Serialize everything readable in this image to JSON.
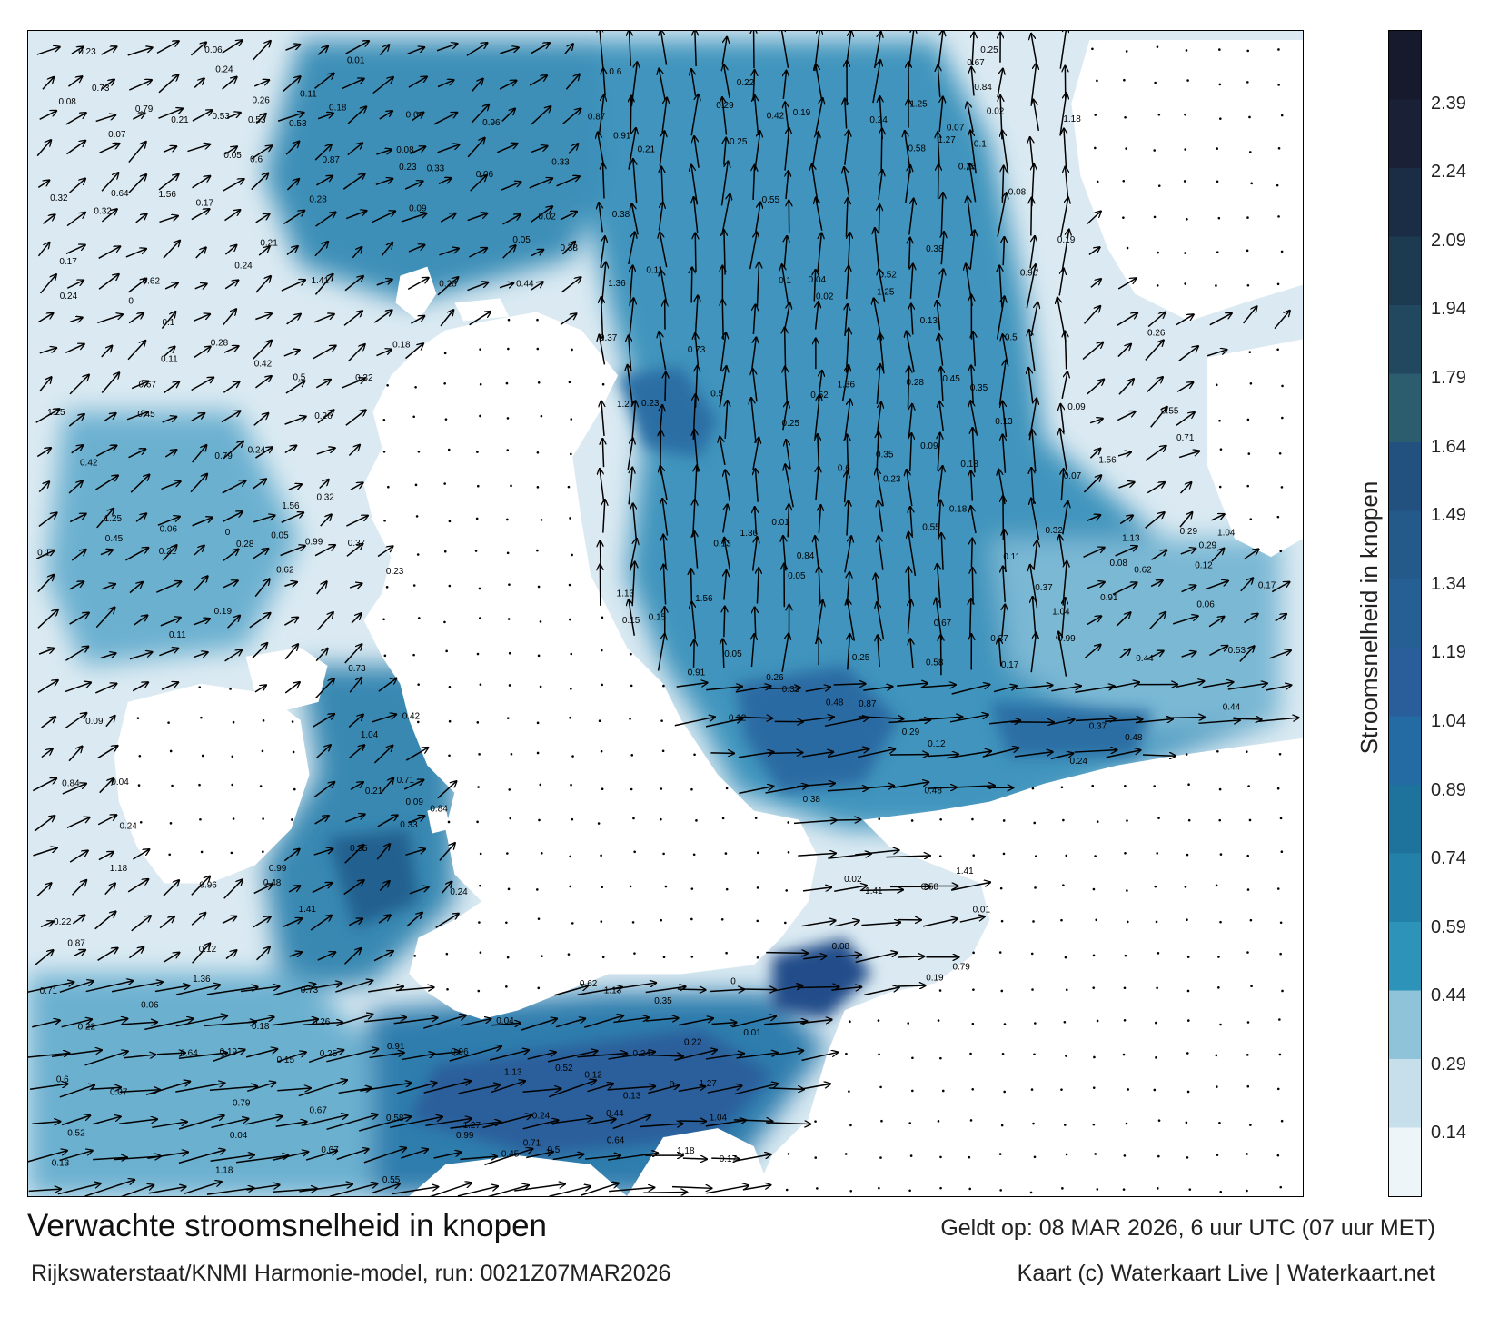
{
  "title": "Verwachte stroomsnelheid in knopen",
  "subtitle": "Rijkswaterstaat/KNMI Harmonie-model, run: 0021Z07MAR2026",
  "valid_time": "Geldt op: 08 MAR 2026, 6 uur UTC (07 uur MET)",
  "credits": "Kaart (c) Waterkaart Live | Waterkaart.net",
  "colorbar": {
    "label": "Stroomsnelheid in knopen",
    "min": 0,
    "max": 2.55,
    "ticks": [
      "0.14",
      "0.29",
      "0.44",
      "0.59",
      "0.74",
      "0.89",
      "1.04",
      "1.19",
      "1.34",
      "1.49",
      "1.64",
      "1.79",
      "1.94",
      "2.09",
      "2.24",
      "2.39"
    ],
    "colors": [
      "#eef5f9",
      "#c6dfea",
      "#8fc3d9",
      "#2d93b8",
      "#2380a8",
      "#1e739c",
      "#246aa3",
      "#2a5e9b",
      "#265f93",
      "#245a8a",
      "#22517f",
      "#2b5d6f",
      "#21485f",
      "#1d3b50",
      "#1b2d44",
      "#1a2035",
      "#161a2c"
    ]
  },
  "map": {
    "sea_light": "#dbeaf2",
    "sea_mid": "#5ea8c9",
    "sea_dark": "#2a6ea4",
    "land": "#ffffff",
    "arrow_color": "#000000",
    "speed_labels": [
      {
        "t": "0.24"
      },
      {
        "t": "0.26"
      },
      {
        "t": "0.19"
      },
      {
        "t": "0.09"
      },
      {
        "t": "0.23"
      },
      {
        "t": "0.11"
      },
      {
        "t": "0.06"
      },
      {
        "t": "0.05"
      },
      {
        "t": "0.17"
      },
      {
        "t": "0.25"
      },
      {
        "t": "0.24"
      },
      {
        "t": "0.12"
      },
      {
        "t": "0.07"
      },
      {
        "t": "0.08"
      },
      {
        "t": "0.13"
      },
      {
        "t": "0.18"
      },
      {
        "t": "0.21"
      },
      {
        "t": "0.28"
      },
      {
        "t": "0.32"
      },
      {
        "t": "0.37"
      },
      {
        "t": "0.38"
      },
      {
        "t": "0.44"
      },
      {
        "t": "0.48"
      },
      {
        "t": "0.52"
      },
      {
        "t": "0.55"
      },
      {
        "t": "0.6"
      },
      {
        "t": "0.64"
      },
      {
        "t": "0.71"
      },
      {
        "t": "0.79"
      },
      {
        "t": "0.84"
      },
      {
        "t": "0.91"
      },
      {
        "t": "0.96"
      },
      {
        "t": "1.04"
      },
      {
        "t": "1.13"
      },
      {
        "t": "1.25"
      },
      {
        "t": "1.36"
      },
      {
        "t": "1.41"
      },
      {
        "t": "1.56"
      },
      {
        "t": "0.35"
      },
      {
        "t": "0.42"
      },
      {
        "t": "0.53"
      },
      {
        "t": "0.67"
      },
      {
        "t": "0.33"
      },
      {
        "t": "0.29"
      },
      {
        "t": "0.22"
      },
      {
        "t": "0.15"
      },
      {
        "t": "0.1"
      },
      {
        "t": "0.04"
      },
      {
        "t": "0.02"
      },
      {
        "t": "0.01"
      },
      {
        "t": "0"
      },
      {
        "t": "0.45"
      },
      {
        "t": "0.5"
      },
      {
        "t": "0.58"
      },
      {
        "t": "0.62"
      },
      {
        "t": "0.73"
      },
      {
        "t": "0.87"
      },
      {
        "t": "0.99"
      },
      {
        "t": "1.18"
      },
      {
        "t": "1.27"
      }
    ]
  }
}
